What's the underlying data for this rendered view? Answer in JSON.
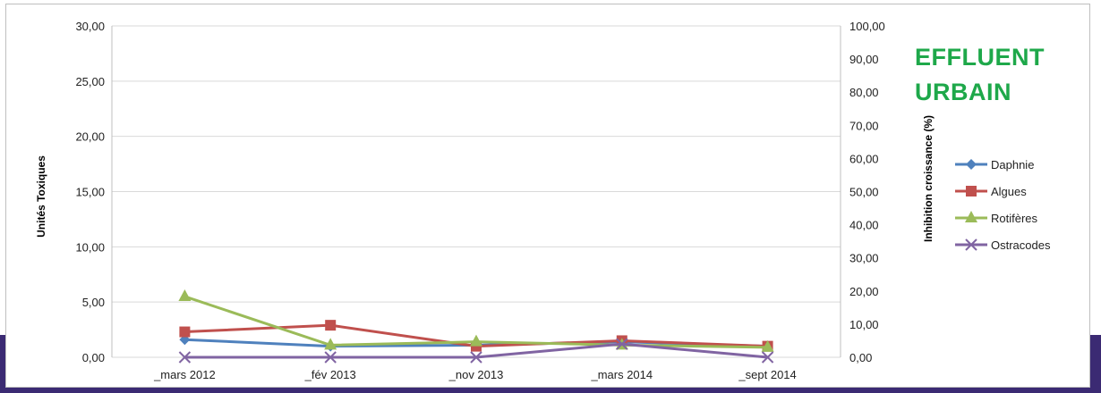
{
  "chart_data": {
    "type": "line",
    "categories": [
      "_mars 2012",
      "_fév 2013",
      "_nov 2013",
      "_mars 2014",
      "_sept 2014"
    ],
    "series": [
      {
        "name": "Daphnie",
        "values": [
          1.6,
          1.0,
          1.1,
          1.4,
          1.0
        ],
        "color": "#4f81bd",
        "marker": "diamond"
      },
      {
        "name": "Algues",
        "values": [
          2.3,
          2.9,
          1.0,
          1.5,
          1.0
        ],
        "color": "#c0504d",
        "marker": "square"
      },
      {
        "name": "Rotifères",
        "values": [
          5.5,
          1.1,
          1.4,
          1.1,
          0.9
        ],
        "color": "#9bbb59",
        "marker": "triangle"
      },
      {
        "name": "Ostracodes",
        "values": [
          0.0,
          0.0,
          0.0,
          1.2,
          0.0
        ],
        "color": "#8064a2",
        "marker": "x"
      }
    ],
    "ylabel": "Unités Toxiques",
    "y2label": "Inhibition croissance (%)",
    "ylim": [
      0,
      30
    ],
    "y2lim": [
      0,
      100
    ],
    "yticks": [
      "0,00",
      "5,00",
      "10,00",
      "15,00",
      "20,00",
      "25,00",
      "30,00"
    ],
    "y2ticks": [
      "0,00",
      "10,00",
      "20,00",
      "30,00",
      "40,00",
      "50,00",
      "60,00",
      "70,00",
      "80,00",
      "90,00",
      "100,00"
    ],
    "grid": true,
    "legend": "right"
  },
  "annotation": {
    "line1": "EFFLUENT",
    "line2": "URBAIN",
    "color": "#1ea84a"
  }
}
